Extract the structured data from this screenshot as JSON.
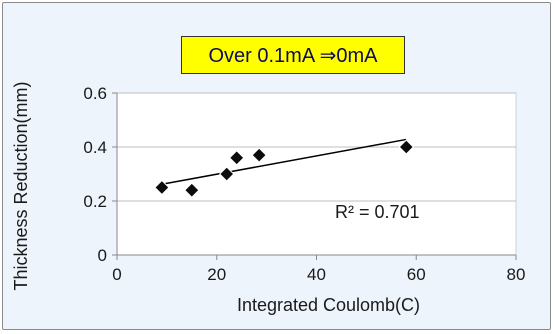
{
  "chart_data": {
    "type": "scatter",
    "title": "",
    "xlabel": "Integrated Coulomb(C)",
    "ylabel": "Thickness  Reduction(mm)",
    "xlim": [
      0,
      80
    ],
    "ylim": [
      0,
      0.6
    ],
    "xticks": [
      0,
      20,
      40,
      60,
      80
    ],
    "yticks": [
      0,
      0.2,
      0.4,
      0.6
    ],
    "xtick_labels": [
      "0",
      "20",
      "40",
      "60",
      "80"
    ],
    "ytick_labels": [
      "0",
      "0.2",
      "0.4",
      "0.6"
    ],
    "grid": "horizontal",
    "series": [
      {
        "marker": "diamond",
        "color": "#0b0b0b",
        "x": [
          9,
          15,
          22,
          24,
          28.5,
          58
        ],
        "y": [
          0.25,
          0.24,
          0.3,
          0.36,
          0.37,
          0.4
        ]
      }
    ],
    "trendline": {
      "type": "linear",
      "x": [
        9,
        58
      ],
      "y": [
        0.262,
        0.428
      ],
      "r_squared_label": "R² = 0.701"
    },
    "annotation": "Over 0.1mA ⇒0mA"
  },
  "colors": {
    "background": "#eef4fb",
    "plot_area": "#ffffff",
    "gridline": "#bfbfbf",
    "annotation_fill": "#ffff00",
    "marker": "#0b0b0b"
  }
}
